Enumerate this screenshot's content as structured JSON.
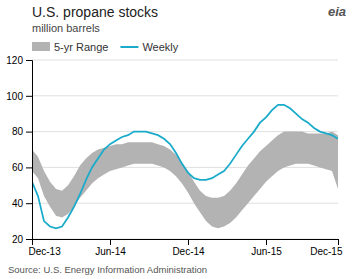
{
  "chart_data": {
    "type": "line",
    "title": "U.S. propane stocks",
    "subtitle": "million barrels",
    "annotations": [
      "Source: U.S. Energy Information Administration",
      "eia"
    ],
    "x": [
      0,
      1,
      2,
      3,
      4,
      5,
      6,
      7,
      8,
      9,
      10,
      11,
      12,
      13,
      14,
      15,
      16,
      17,
      18,
      19,
      20,
      21,
      22,
      23,
      24,
      25,
      26,
      27,
      28,
      29,
      30,
      31,
      32,
      33,
      34,
      35,
      36,
      37,
      38,
      39,
      40,
      41,
      42,
      43,
      44,
      45,
      46,
      47,
      48,
      49,
      50,
      51
    ],
    "series": [
      {
        "name": "5-yr Range",
        "type": "area",
        "color": "#b3b3b3",
        "upper": [
          70,
          66,
          58,
          52,
          48,
          47,
          50,
          55,
          61,
          65,
          68,
          70,
          71,
          72,
          73,
          73,
          74,
          74,
          74,
          74,
          74,
          73,
          72,
          70,
          67,
          63,
          58,
          52,
          47,
          44,
          43,
          43,
          44,
          47,
          51,
          56,
          61,
          65,
          69,
          72,
          75,
          78,
          80,
          80,
          80,
          80,
          79,
          79,
          79,
          79,
          80,
          78
        ],
        "lower": [
          58,
          54,
          44,
          38,
          33,
          32,
          34,
          38,
          43,
          47,
          51,
          54,
          56,
          58,
          59,
          60,
          61,
          62,
          62,
          62,
          62,
          61,
          60,
          58,
          55,
          51,
          46,
          40,
          35,
          30,
          27,
          26,
          27,
          29,
          32,
          36,
          40,
          44,
          48,
          52,
          55,
          58,
          60,
          61,
          62,
          62,
          62,
          61,
          60,
          59,
          58,
          48
        ]
      },
      {
        "name": "Weekly",
        "type": "line",
        "color": "#1aabcb",
        "values": [
          52,
          44,
          30,
          27,
          26,
          27,
          32,
          38,
          45,
          53,
          60,
          65,
          70,
          73,
          75,
          77,
          78,
          80,
          80,
          80,
          79,
          78,
          76,
          73,
          68,
          62,
          57,
          54,
          53,
          53,
          54,
          56,
          58,
          62,
          67,
          72,
          76,
          80,
          85,
          88,
          92,
          95,
          95,
          93,
          90,
          87,
          85,
          82,
          80,
          79,
          78,
          76
        ]
      }
    ],
    "xlim": [
      0,
      51
    ],
    "xticks": [
      {
        "value": 0,
        "label": "Dec-13"
      },
      {
        "value": 13,
        "label": "Jun-14"
      },
      {
        "value": 26,
        "label": "Dec-14"
      },
      {
        "value": 39,
        "label": "Jun-15"
      },
      {
        "value": 51,
        "label": "Dec-15"
      }
    ],
    "ylim": [
      20,
      120
    ],
    "yticks": [
      20,
      40,
      60,
      80,
      100,
      120
    ],
    "grid": true,
    "legend": "top left"
  }
}
